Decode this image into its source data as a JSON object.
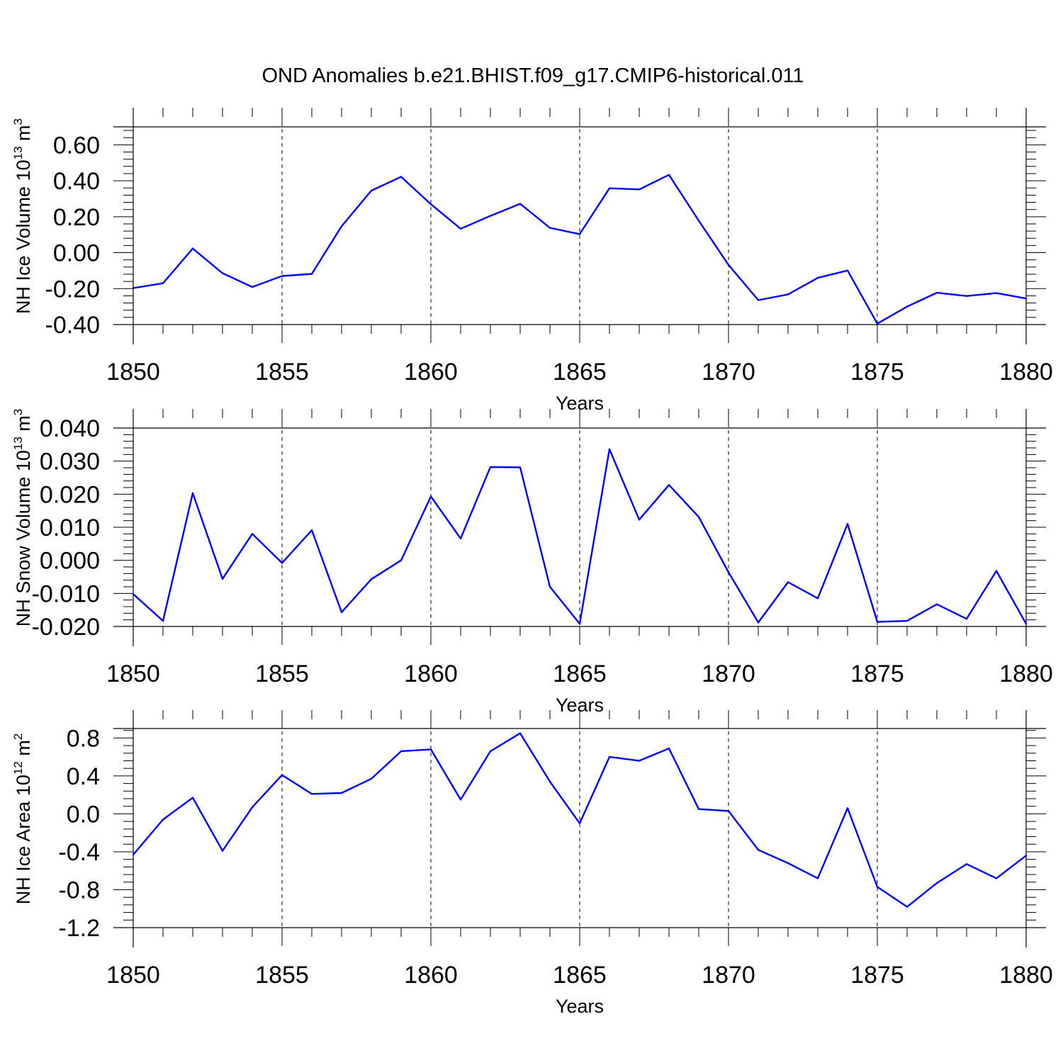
{
  "title": "OND Anomalies b.e21.BHIST.f09_g17.CMIP6-historical.011",
  "line_color": "#0000ff",
  "chart_data": [
    {
      "type": "line",
      "name": "ice-volume",
      "ylabel_main": "NH Ice Volume 10",
      "ylabel_exp": "13",
      "ylabel_unit": " m",
      "ylabel_unit_exp": "3",
      "xlabel": "Years",
      "xlim": [
        1850,
        1880
      ],
      "ylim": [
        -0.4,
        0.7
      ],
      "xticks": [
        1850,
        1855,
        1860,
        1865,
        1870,
        1875,
        1880
      ],
      "yticks": [
        -0.4,
        -0.2,
        0.0,
        0.2,
        0.4,
        0.6
      ],
      "ytick_labels": [
        "-0.40",
        "-0.20",
        "0.00",
        "0.20",
        "0.40",
        "0.60"
      ],
      "x": [
        1850,
        1851,
        1852,
        1853,
        1854,
        1855,
        1856,
        1857,
        1858,
        1859,
        1860,
        1861,
        1862,
        1863,
        1864,
        1865,
        1866,
        1867,
        1868,
        1869,
        1870,
        1871,
        1872,
        1873,
        1874,
        1875,
        1876,
        1877,
        1878,
        1879,
        1880
      ],
      "values": [
        -0.197,
        -0.17,
        0.023,
        -0.114,
        -0.191,
        -0.13,
        -0.118,
        0.147,
        0.345,
        0.422,
        0.27,
        0.133,
        0.205,
        0.272,
        0.138,
        0.103,
        0.358,
        0.352,
        0.433,
        0.178,
        -0.068,
        -0.264,
        -0.232,
        -0.14,
        -0.099,
        -0.395,
        -0.3,
        -0.223,
        -0.241,
        -0.225,
        -0.255
      ]
    },
    {
      "type": "line",
      "name": "snow-volume",
      "ylabel_main": "NH Snow Volume 10",
      "ylabel_exp": "13",
      "ylabel_unit": " m",
      "ylabel_unit_exp": "3",
      "xlabel": "Years",
      "xlim": [
        1850,
        1880
      ],
      "ylim": [
        -0.02,
        0.04
      ],
      "xticks": [
        1850,
        1855,
        1860,
        1865,
        1870,
        1875,
        1880
      ],
      "yticks": [
        -0.02,
        -0.01,
        0.0,
        0.01,
        0.02,
        0.03,
        0.04
      ],
      "ytick_labels": [
        "-0.020",
        "-0.010",
        "0.000",
        "0.010",
        "0.020",
        "0.030",
        "0.040"
      ],
      "x": [
        1850,
        1851,
        1852,
        1853,
        1854,
        1855,
        1856,
        1857,
        1858,
        1859,
        1860,
        1861,
        1862,
        1863,
        1864,
        1865,
        1866,
        1867,
        1868,
        1869,
        1870,
        1871,
        1872,
        1873,
        1874,
        1875,
        1876,
        1877,
        1878,
        1879,
        1880
      ],
      "values": [
        -0.0102,
        -0.0183,
        0.0203,
        -0.0056,
        0.008,
        -0.0008,
        0.0091,
        -0.0157,
        -0.0057,
        0.0,
        0.0193,
        0.0066,
        0.0282,
        0.0281,
        -0.008,
        -0.0192,
        0.0336,
        0.0123,
        0.0228,
        0.0131,
        -0.0036,
        -0.0188,
        -0.0066,
        -0.0115,
        0.011,
        -0.0186,
        -0.0183,
        -0.0133,
        -0.0177,
        -0.0032,
        -0.0192
      ]
    },
    {
      "type": "line",
      "name": "ice-area",
      "ylabel_main": "NH Ice Area 10",
      "ylabel_exp": "12",
      "ylabel_unit": " m",
      "ylabel_unit_exp": "2",
      "xlabel": "Years",
      "xlim": [
        1850,
        1880
      ],
      "ylim": [
        -1.2,
        0.9
      ],
      "xticks": [
        1850,
        1855,
        1860,
        1865,
        1870,
        1875,
        1880
      ],
      "yticks": [
        -1.2,
        -0.8,
        -0.4,
        0.0,
        0.4,
        0.8
      ],
      "ytick_labels": [
        "-1.2",
        "-0.8",
        "-0.4",
        "0.0",
        "0.4",
        "0.8"
      ],
      "x": [
        1850,
        1851,
        1852,
        1853,
        1854,
        1855,
        1856,
        1857,
        1858,
        1859,
        1860,
        1861,
        1862,
        1863,
        1864,
        1865,
        1866,
        1867,
        1868,
        1869,
        1870,
        1871,
        1872,
        1873,
        1874,
        1875,
        1876,
        1877,
        1878,
        1879,
        1880
      ],
      "values": [
        -0.43,
        -0.06,
        0.17,
        -0.39,
        0.07,
        0.41,
        0.21,
        0.22,
        0.37,
        0.66,
        0.68,
        0.15,
        0.66,
        0.85,
        0.34,
        -0.1,
        0.6,
        0.56,
        0.69,
        0.05,
        0.03,
        -0.38,
        -0.52,
        -0.68,
        0.06,
        -0.77,
        -0.98,
        -0.73,
        -0.53,
        -0.68,
        -0.44
      ]
    }
  ]
}
